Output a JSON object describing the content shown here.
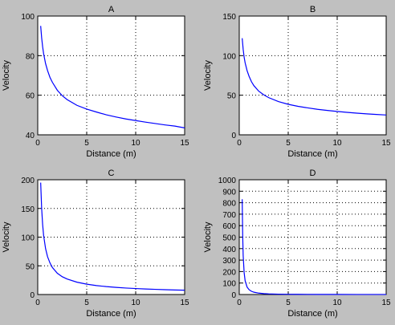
{
  "chart_data": [
    {
      "type": "line",
      "title": "A",
      "xlabel": "Distance (m)",
      "ylabel": "Velocity",
      "xlim": [
        0,
        15
      ],
      "ylim": [
        40,
        100
      ],
      "xticks": [
        0,
        5,
        10,
        15
      ],
      "yticks": [
        40,
        60,
        80,
        100
      ],
      "grid": true,
      "series": [
        {
          "color": "#0000ff",
          "x": [
            0.3,
            0.4,
            0.5,
            0.6,
            0.8,
            1,
            1.25,
            1.5,
            2,
            2.5,
            3,
            4,
            5,
            6,
            7,
            8,
            9,
            10,
            11,
            12,
            13,
            14,
            15
          ],
          "y": [
            95,
            89,
            84.5,
            81,
            76,
            72.5,
            69,
            66.5,
            62.5,
            59.8,
            57.8,
            54.9,
            53,
            51.5,
            50.1,
            49,
            48,
            47.2,
            46.4,
            45.7,
            45,
            44.4,
            43.5
          ]
        }
      ]
    },
    {
      "type": "line",
      "title": "B",
      "xlabel": "Distance (m)",
      "ylabel": "Velocity",
      "xlim": [
        0,
        15
      ],
      "ylim": [
        0,
        150
      ],
      "xticks": [
        0,
        5,
        10,
        15
      ],
      "yticks": [
        0,
        50,
        100,
        150
      ],
      "grid": true,
      "series": [
        {
          "color": "#0000ff",
          "x": [
            0.3,
            0.4,
            0.5,
            0.6,
            0.8,
            1,
            1.25,
            1.5,
            2,
            2.5,
            3,
            4,
            5,
            6,
            7,
            8,
            9,
            10,
            11,
            12,
            13,
            14,
            15
          ],
          "y": [
            122,
            108,
            98,
            91,
            81,
            74,
            67,
            62,
            55,
            50.5,
            47,
            42,
            38.5,
            36,
            34,
            32.2,
            30.8,
            29.5,
            28.4,
            27.4,
            26.5,
            25.7,
            25
          ]
        }
      ]
    },
    {
      "type": "line",
      "title": "C",
      "xlabel": "Distance (m)",
      "ylabel": "Velocity",
      "xlim": [
        0,
        15
      ],
      "ylim": [
        0,
        200
      ],
      "xticks": [
        0,
        5,
        10,
        15
      ],
      "yticks": [
        0,
        50,
        100,
        150,
        200
      ],
      "grid": true,
      "series": [
        {
          "color": "#0000ff",
          "x": [
            0.3,
            0.4,
            0.5,
            0.6,
            0.8,
            1,
            1.25,
            1.5,
            2,
            2.5,
            3,
            4,
            5,
            6,
            7,
            8,
            9,
            10,
            11,
            12,
            13,
            14,
            15
          ],
          "y": [
            195,
            150,
            122,
            103,
            80,
            66,
            55,
            47,
            37,
            31,
            27,
            21.5,
            18,
            15.6,
            13.8,
            12.4,
            11.3,
            10.4,
            9.6,
            9,
            8.4,
            7.9,
            7.5
          ]
        }
      ]
    },
    {
      "type": "line",
      "title": "D",
      "xlabel": "Distance (m)",
      "ylabel": "Velocity",
      "xlim": [
        0,
        15
      ],
      "ylim": [
        0,
        1000
      ],
      "xticks": [
        0,
        5,
        10,
        15
      ],
      "yticks": [
        0,
        100,
        200,
        300,
        400,
        500,
        600,
        700,
        800,
        900,
        1000
      ],
      "grid": true,
      "series": [
        {
          "color": "#0000ff",
          "x": [
            0.3,
            0.35,
            0.4,
            0.5,
            0.6,
            0.8,
            1,
            1.25,
            1.5,
            2,
            2.5,
            3,
            4,
            5,
            6,
            8,
            10,
            12,
            15
          ],
          "y": [
            830,
            520,
            340,
            190,
            120,
            65,
            42,
            28,
            20,
            12,
            8,
            5.5,
            3.2,
            2.2,
            1.6,
            1,
            0.7,
            0.5,
            0.3
          ]
        }
      ]
    }
  ]
}
